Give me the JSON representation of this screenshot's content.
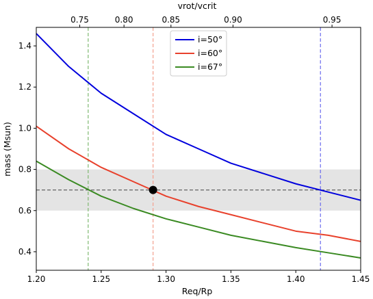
{
  "chart_data": {
    "type": "line",
    "xlabel": "Req/Rp",
    "ylabel": "mass (Msun)",
    "top_xlabel": "vrot/vcrit",
    "xlim": [
      1.2,
      1.45
    ],
    "ylim": [
      0.31,
      1.49
    ],
    "xticks": [
      "1.20",
      "1.25",
      "1.30",
      "1.35",
      "1.40",
      "1.45"
    ],
    "xtick_values": [
      1.2,
      1.25,
      1.3,
      1.35,
      1.4,
      1.45
    ],
    "yticks": [
      "0.4",
      "0.6",
      "0.8",
      "1.0",
      "1.2",
      "1.4"
    ],
    "ytick_values": [
      0.4,
      0.6,
      0.8,
      1.0,
      1.2,
      1.4
    ],
    "top_xticks": [
      "0.75",
      "0.80",
      "0.85",
      "0.90",
      "0.95"
    ],
    "top_xtick_positions": [
      1.2335,
      1.2676,
      1.3038,
      1.3516,
      1.4279
    ],
    "series": [
      {
        "name": "i=50°",
        "color": "#0000dd",
        "x": [
          1.2,
          1.225,
          1.25,
          1.275,
          1.3,
          1.325,
          1.35,
          1.375,
          1.4,
          1.425,
          1.45
        ],
        "y": [
          1.46,
          1.3,
          1.17,
          1.07,
          0.97,
          0.9,
          0.83,
          0.78,
          0.73,
          0.69,
          0.65
        ]
      },
      {
        "name": "i=60°",
        "color": "#e8412c",
        "x": [
          1.2,
          1.225,
          1.25,
          1.275,
          1.3,
          1.325,
          1.35,
          1.375,
          1.4,
          1.425,
          1.45
        ],
        "y": [
          1.01,
          0.9,
          0.81,
          0.74,
          0.67,
          0.62,
          0.58,
          0.54,
          0.5,
          0.48,
          0.45
        ]
      },
      {
        "name": "i=67°",
        "color": "#3a8a22",
        "x": [
          1.2,
          1.225,
          1.25,
          1.275,
          1.3,
          1.325,
          1.35,
          1.375,
          1.4,
          1.425,
          1.45
        ],
        "y": [
          0.84,
          0.75,
          0.67,
          0.61,
          0.56,
          0.52,
          0.48,
          0.45,
          0.42,
          0.395,
          0.37
        ]
      }
    ],
    "vlines": [
      {
        "x": 1.24,
        "color": "#7fb870"
      },
      {
        "x": 1.29,
        "color": "#f4a08e"
      },
      {
        "x": 1.419,
        "color": "#6b6bee"
      }
    ],
    "hline": {
      "y": 0.7,
      "color": "#555555"
    },
    "band": {
      "y_min": 0.6,
      "y_max": 0.8,
      "color": "#e4e4e4"
    },
    "marker": {
      "x": 1.29,
      "y": 0.7,
      "color": "#000000"
    },
    "legend_position": "top-center"
  }
}
